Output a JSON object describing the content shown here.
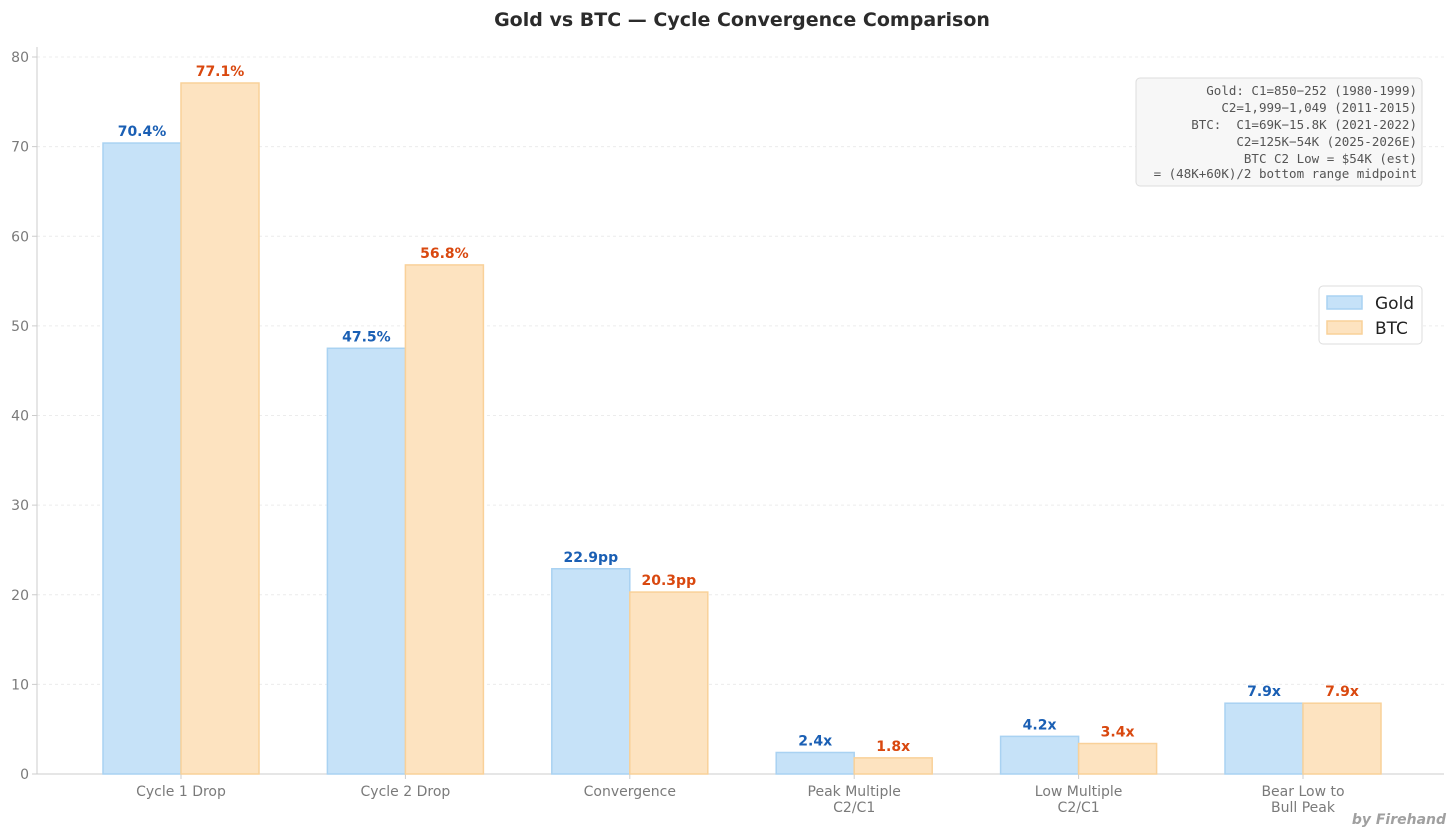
{
  "chart_data": {
    "type": "bar",
    "title": "Gold vs BTC — Cycle Convergence Comparison",
    "xlabel": "",
    "ylabel": "",
    "ylim": [
      0,
      80
    ],
    "yticks": [
      0,
      10,
      20,
      30,
      40,
      50,
      60,
      70,
      80
    ],
    "grid": true,
    "categories": [
      [
        "Cycle 1 Drop"
      ],
      [
        "Cycle 2 Drop"
      ],
      [
        "Convergence"
      ],
      [
        "Peak Multiple",
        "C2/C1"
      ],
      [
        "Low Multiple",
        "C2/C1"
      ],
      [
        "Bear Low to",
        "Bull Peak"
      ]
    ],
    "series": [
      {
        "name": "Gold",
        "color": "#c6e2f8",
        "edge_color": "#a9d2f2",
        "label_color": "#1a5fb4",
        "values": [
          70.4,
          47.5,
          22.9,
          2.4,
          4.2,
          7.9
        ],
        "labels": [
          "70.4%",
          "47.5%",
          "22.9pp",
          "2.4x",
          "4.2x",
          "7.9x"
        ]
      },
      {
        "name": "BTC",
        "color": "#fde3c0",
        "edge_color": "#f9d199",
        "label_color": "#d9480f",
        "values": [
          77.1,
          56.8,
          20.3,
          1.8,
          3.4,
          7.9
        ],
        "labels": [
          "77.1%",
          "56.8%",
          "20.3pp",
          "1.8x",
          "3.4x",
          "7.9x"
        ]
      }
    ],
    "legend_position": "center-right",
    "annotation_lines": [
      "Gold: C1=850−252 (1980-1999)",
      "C2=1,999−1,049 (2011-2015)",
      "BTC:  C1=69K−15.8K (2021-2022)",
      "C2=125K−54K (2025-2026E)",
      "BTC C2 Low = $54K (est)",
      "= (48K+60K)/2 bottom range midpoint"
    ],
    "credit": "by Firehand"
  }
}
